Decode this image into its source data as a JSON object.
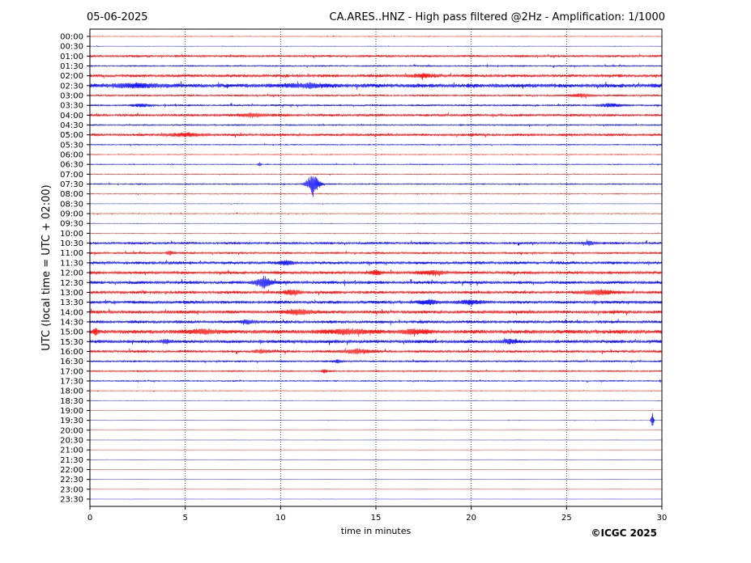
{
  "header": {
    "date": "05-06-2025",
    "title": "CA.ARES..HNZ - High pass filtered @2Hz - Amplification: 1/1000"
  },
  "footer": {
    "copyright": "©ICGC 2025"
  },
  "chart_data": {
    "type": "line",
    "xlabel": "time in minutes",
    "ylabel": "UTC (local time = UTC + 02:00)",
    "xlim": [
      0,
      30
    ],
    "x_ticks": [
      "0",
      "5",
      "10",
      "15",
      "20",
      "25",
      "30"
    ],
    "x_grid_minutes": [
      5,
      10,
      15,
      20,
      25
    ],
    "grid": "vertical dotted at every 5 minutes",
    "colors": [
      "#ff0000",
      "#0000ff"
    ],
    "trace_colors_note": "traces alternate red (:00 rows) and blue (:30 rows)",
    "rows": [
      "00:00",
      "00:30",
      "01:00",
      "01:30",
      "02:00",
      "02:30",
      "03:00",
      "03:30",
      "04:00",
      "04:30",
      "05:00",
      "05:30",
      "06:00",
      "06:30",
      "07:00",
      "07:30",
      "08:00",
      "08:30",
      "09:00",
      "09:30",
      "10:00",
      "10:30",
      "11:00",
      "11:30",
      "12:00",
      "12:30",
      "13:00",
      "13:30",
      "14:00",
      "14:30",
      "15:00",
      "15:30",
      "16:00",
      "16:30",
      "17:00",
      "17:30",
      "18:00",
      "18:30",
      "19:00",
      "19:30",
      "20:00",
      "20:30",
      "21:00",
      "21:30",
      "22:00",
      "22:30",
      "23:00",
      "23:30"
    ],
    "noise_level": [
      0.5,
      0.4,
      1.4,
      1.0,
      1.8,
      2.4,
      1.2,
      1.2,
      1.6,
      1.0,
      1.6,
      0.8,
      0.6,
      0.7,
      0.6,
      0.9,
      0.6,
      0.4,
      0.6,
      0.4,
      0.5,
      1.5,
      1.3,
      1.8,
      1.8,
      1.9,
      1.8,
      1.9,
      1.9,
      1.8,
      2.3,
      2.0,
      1.6,
      1.2,
      1.0,
      0.9,
      0.5,
      0.4,
      0.3,
      0.3,
      0.2,
      0.2,
      0.2,
      0.2,
      0.2,
      0.2,
      0.2,
      0.2
    ],
    "events": [
      {
        "row": "02:00",
        "minute": 17.5,
        "amplitude": 2.0,
        "duration": 1.5
      },
      {
        "row": "02:30",
        "minute": 2.5,
        "amplitude": 2.0,
        "duration": 3.0
      },
      {
        "row": "02:30",
        "minute": 11.5,
        "amplitude": 2.0,
        "duration": 2.5
      },
      {
        "row": "03:00",
        "minute": 25.8,
        "amplitude": 2.0,
        "duration": 1.2
      },
      {
        "row": "03:30",
        "minute": 2.7,
        "amplitude": 2.0,
        "duration": 1.0
      },
      {
        "row": "03:30",
        "minute": 27.3,
        "amplitude": 2.0,
        "duration": 1.5
      },
      {
        "row": "04:00",
        "minute": 8.5,
        "amplitude": 2.0,
        "duration": 1.5
      },
      {
        "row": "05:00",
        "minute": 5.0,
        "amplitude": 2.0,
        "duration": 2.0
      },
      {
        "row": "06:30",
        "minute": 8.9,
        "amplitude": 3.0,
        "duration": 0.2
      },
      {
        "row": "07:30",
        "minute": 11.7,
        "amplitude": 15.0,
        "duration": 0.7
      },
      {
        "row": "10:30",
        "minute": 26.2,
        "amplitude": 2.5,
        "duration": 0.6
      },
      {
        "row": "11:00",
        "minute": 4.2,
        "amplitude": 2.5,
        "duration": 0.4
      },
      {
        "row": "11:30",
        "minute": 10.3,
        "amplitude": 2.5,
        "duration": 1.0
      },
      {
        "row": "12:00",
        "minute": 15.0,
        "amplitude": 2.5,
        "duration": 0.6
      },
      {
        "row": "12:00",
        "minute": 18.0,
        "amplitude": 2.5,
        "duration": 1.5
      },
      {
        "row": "12:30",
        "minute": 9.1,
        "amplitude": 8.0,
        "duration": 0.9
      },
      {
        "row": "13:00",
        "minute": 10.6,
        "amplitude": 3.0,
        "duration": 0.9
      },
      {
        "row": "13:00",
        "minute": 26.7,
        "amplitude": 3.0,
        "duration": 1.8
      },
      {
        "row": "13:30",
        "minute": 17.8,
        "amplitude": 2.5,
        "duration": 1.2
      },
      {
        "row": "13:30",
        "minute": 20.0,
        "amplitude": 2.5,
        "duration": 1.5
      },
      {
        "row": "14:00",
        "minute": 11.0,
        "amplitude": 3.0,
        "duration": 1.6
      },
      {
        "row": "14:30",
        "minute": 8.3,
        "amplitude": 2.5,
        "duration": 0.8
      },
      {
        "row": "15:00",
        "minute": 0.3,
        "amplitude": 3.5,
        "duration": 0.3
      },
      {
        "row": "15:00",
        "minute": 6.0,
        "amplitude": 2.5,
        "duration": 1.8
      },
      {
        "row": "15:00",
        "minute": 13.5,
        "amplitude": 2.5,
        "duration": 3.0
      },
      {
        "row": "15:00",
        "minute": 17.0,
        "amplitude": 2.5,
        "duration": 1.6
      },
      {
        "row": "15:30",
        "minute": 4.0,
        "amplitude": 2.5,
        "duration": 0.5
      },
      {
        "row": "15:30",
        "minute": 22.0,
        "amplitude": 2.5,
        "duration": 1.0
      },
      {
        "row": "16:00",
        "minute": 14.0,
        "amplitude": 2.5,
        "duration": 1.8
      },
      {
        "row": "16:00",
        "minute": 9.0,
        "amplitude": 2.0,
        "duration": 1.0
      },
      {
        "row": "16:30",
        "minute": 13.0,
        "amplitude": 2.0,
        "duration": 0.5
      },
      {
        "row": "17:00",
        "minute": 12.3,
        "amplitude": 2.0,
        "duration": 0.4
      },
      {
        "row": "19:30",
        "minute": 29.5,
        "amplitude": 12.0,
        "duration": 0.15
      }
    ]
  }
}
